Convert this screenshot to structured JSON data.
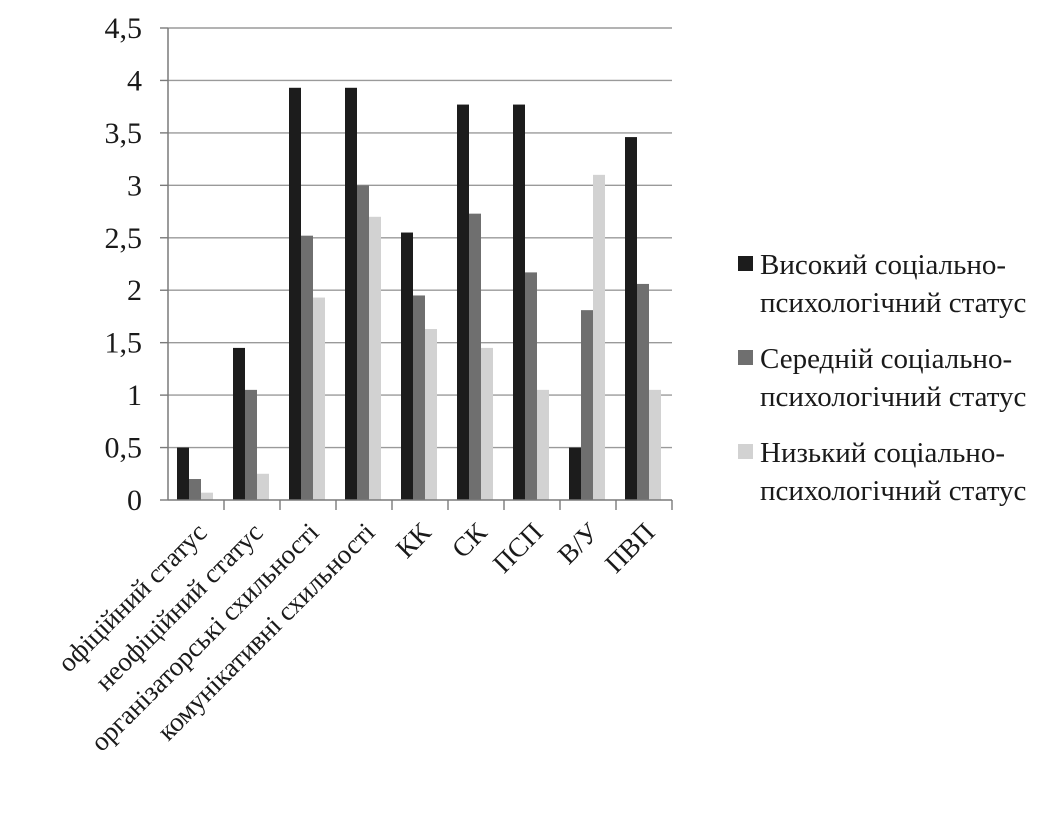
{
  "chart_data": {
    "type": "bar",
    "categories": [
      "офіційний статус",
      "неофіційний статус",
      "організаторські схильності",
      "комунікативні схильності",
      "КК",
      "СК",
      "ПСП",
      "В/У",
      "ПВП"
    ],
    "series": [
      {
        "name": "Високий соціально-психологічний статус",
        "color": "#1c1c1c",
        "values": [
          0.5,
          1.45,
          3.93,
          3.93,
          2.55,
          3.77,
          3.77,
          0.5,
          3.46
        ]
      },
      {
        "name": "Середній соціально-психологічний статус",
        "color": "#6f6f6f",
        "values": [
          0.2,
          1.05,
          2.52,
          3.0,
          1.95,
          2.73,
          2.17,
          1.81,
          2.06
        ]
      },
      {
        "name": "Низький соціально-психологічний статус",
        "color": "#d2d2d2",
        "values": [
          0.07,
          0.25,
          1.93,
          2.7,
          1.63,
          1.45,
          1.05,
          3.1,
          1.05
        ]
      }
    ],
    "yticks": [
      "0",
      "0,5",
      "1",
      "1,5",
      "2",
      "2,5",
      "3",
      "3,5",
      "4",
      "4,5"
    ],
    "ylim": [
      0,
      4.5
    ],
    "grid": true,
    "legend_position": "right"
  }
}
